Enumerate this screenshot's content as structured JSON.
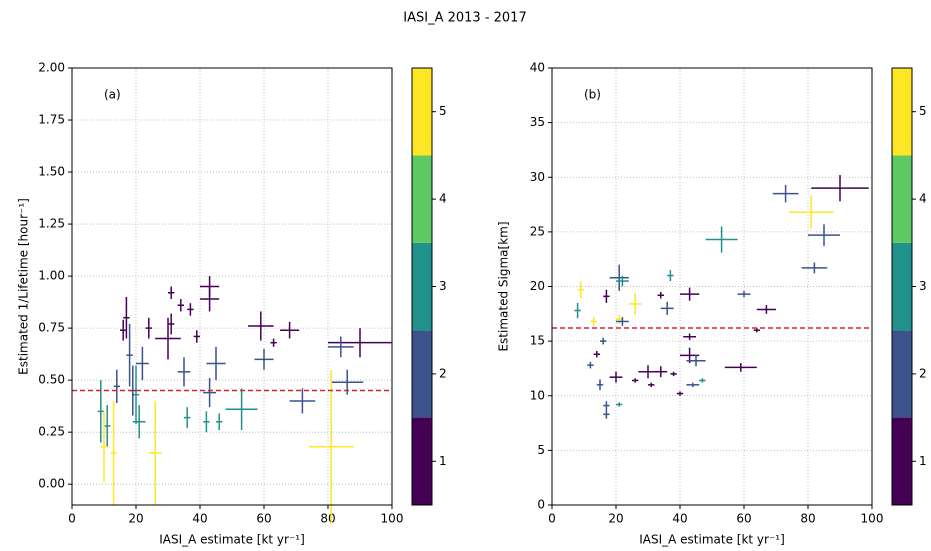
{
  "title": "IASI_A 2013 - 2017",
  "chart_data": [
    {
      "type": "scatter",
      "annotation": "(a)",
      "xlabel": "IASI_A estimate [kt yr⁻¹]",
      "ylabel": "Estimated 1/Lifetime [hour⁻¹]",
      "xlim": [
        0,
        100
      ],
      "xticks": [
        0,
        20,
        40,
        60,
        80,
        100
      ],
      "ylim": [
        -0.1,
        2.0
      ],
      "yticks": [
        {
          "value": 0,
          "label": "0.00"
        },
        {
          "value": 0.25,
          "label": "0.25"
        },
        {
          "value": 0.5,
          "label": "0.50"
        },
        {
          "value": 0.75,
          "label": "0.75"
        },
        {
          "value": 1,
          "label": "1.00"
        },
        {
          "value": 1.25,
          "label": "1.25"
        },
        {
          "value": 1.5,
          "label": "1.50"
        },
        {
          "value": 1.75,
          "label": "1.75"
        },
        {
          "value": 2,
          "label": "2.00"
        }
      ],
      "grid": true,
      "reference_line": {
        "value": 0.45,
        "color": "#d62728"
      },
      "x": [
        90,
        84,
        86,
        81,
        72,
        59,
        60,
        68,
        63,
        53,
        45,
        43,
        43,
        43,
        46,
        42,
        39,
        37,
        34,
        31,
        30,
        31,
        35,
        36,
        24,
        26,
        22,
        21,
        20,
        18,
        17,
        16,
        14,
        13,
        11,
        9,
        10,
        19
      ],
      "values": [
        0.68,
        0.66,
        0.49,
        0.18,
        0.4,
        0.76,
        0.6,
        0.74,
        0.68,
        0.36,
        0.58,
        0.95,
        0.89,
        0.44,
        0.3,
        0.3,
        0.71,
        0.84,
        0.86,
        0.92,
        0.7,
        0.77,
        0.54,
        0.32,
        0.75,
        0.15,
        0.58,
        0.3,
        0.43,
        0.62,
        0.8,
        0.74,
        0.47,
        0.15,
        0.28,
        0.35,
        0.18,
        0.45
      ],
      "xerr": [
        10,
        4,
        5,
        7,
        4,
        4,
        3,
        3,
        1,
        5,
        3,
        3,
        3,
        2,
        1,
        1,
        1,
        1,
        1,
        1,
        4,
        1,
        2,
        1,
        1,
        2,
        2,
        2,
        1,
        1,
        1,
        1,
        1,
        1,
        1,
        1,
        1,
        1
      ],
      "yerr": [
        0.07,
        0.05,
        0.06,
        0.37,
        0.06,
        0.07,
        0.05,
        0.04,
        0.02,
        0.1,
        0.08,
        0.05,
        0.06,
        0.07,
        0.04,
        0.05,
        0.03,
        0.03,
        0.03,
        0.03,
        0.1,
        0.05,
        0.07,
        0.05,
        0.05,
        0.25,
        0.08,
        0.08,
        0.14,
        0.15,
        0.1,
        0.05,
        0.08,
        0.25,
        0.1,
        0.15,
        0.17,
        0.12
      ],
      "classes": [
        1,
        2,
        2,
        5,
        2,
        1,
        2,
        1,
        1,
        3,
        2,
        1,
        1,
        2,
        3,
        3,
        1,
        1,
        1,
        1,
        1,
        1,
        2,
        3,
        1,
        5,
        2,
        3,
        3,
        2,
        1,
        1,
        2,
        5,
        3,
        3,
        5,
        2
      ],
      "colorbar": {
        "lim": [
          0.5,
          5.5
        ],
        "ticks": [
          1,
          2,
          3,
          4,
          5
        ],
        "colors": [
          "#440154",
          "#3b528b",
          "#21918c",
          "#5ec962",
          "#fde725"
        ]
      }
    },
    {
      "type": "scatter",
      "annotation": "(b)",
      "xlabel": "IASI_A estimate [kt yr⁻¹]",
      "ylabel": "Estimated Sigma[km]",
      "xlim": [
        0,
        100
      ],
      "xticks": [
        0,
        20,
        40,
        60,
        80,
        100
      ],
      "ylim": [
        0,
        40
      ],
      "yticks": [
        0,
        5,
        10,
        15,
        20,
        25,
        30,
        35,
        40
      ],
      "grid": true,
      "reference_line": {
        "value": 16.2,
        "color": "#d62728"
      },
      "x": [
        90,
        73,
        81,
        85,
        82,
        53,
        60,
        67,
        64,
        59,
        43,
        36,
        34,
        37,
        26,
        21,
        22,
        21,
        22,
        17,
        9,
        8,
        13,
        14,
        16,
        43,
        45,
        43,
        30,
        34,
        38,
        44,
        20,
        17,
        17,
        26,
        31,
        40,
        47,
        21,
        12,
        15
      ],
      "values": [
        29.0,
        28.5,
        26.8,
        24.7,
        21.7,
        24.3,
        19.3,
        17.9,
        16.0,
        12.6,
        19.3,
        18.0,
        19.2,
        21.0,
        18.4,
        20.8,
        20.5,
        17.0,
        16.8,
        19.1,
        19.7,
        17.8,
        16.8,
        13.8,
        15.0,
        13.7,
        13.2,
        15.4,
        12.2,
        12.2,
        12.0,
        11.0,
        11.7,
        9.1,
        8.3,
        11.4,
        11.0,
        10.2,
        11.4,
        9.2,
        12.8,
        11.0
      ],
      "xerr": [
        9,
        4,
        7,
        5,
        4,
        5,
        2,
        3,
        1,
        5,
        3,
        2,
        1,
        1,
        2,
        3,
        2,
        1,
        2,
        1,
        1,
        1,
        1,
        1,
        1,
        3,
        3,
        2,
        3,
        2,
        1,
        2,
        2,
        1,
        1,
        1,
        1,
        1,
        1,
        1,
        1,
        1
      ],
      "yerr": [
        1.2,
        0.8,
        1.5,
        1.0,
        0.5,
        1.2,
        0.3,
        0.4,
        0.2,
        0.4,
        0.6,
        0.6,
        0.3,
        0.5,
        1.0,
        1.2,
        0.5,
        0.4,
        0.4,
        0.6,
        0.8,
        0.7,
        0.4,
        0.3,
        0.3,
        0.7,
        0.5,
        0.3,
        0.6,
        0.5,
        0.2,
        0.2,
        0.5,
        0.4,
        0.4,
        0.2,
        0.2,
        0.2,
        0.2,
        0.2,
        0.3,
        0.5
      ],
      "classes": [
        1,
        2,
        5,
        2,
        2,
        3,
        2,
        1,
        1,
        1,
        1,
        2,
        1,
        3,
        5,
        2,
        3,
        5,
        2,
        1,
        5,
        3,
        5,
        1,
        2,
        1,
        2,
        1,
        1,
        1,
        1,
        2,
        1,
        2,
        2,
        1,
        1,
        1,
        3,
        3,
        2,
        2
      ],
      "colorbar": {
        "lim": [
          0.5,
          5.5
        ],
        "ticks": [
          1,
          2,
          3,
          4,
          5
        ],
        "colors": [
          "#440154",
          "#3b528b",
          "#21918c",
          "#5ec962",
          "#fde725"
        ]
      }
    }
  ]
}
